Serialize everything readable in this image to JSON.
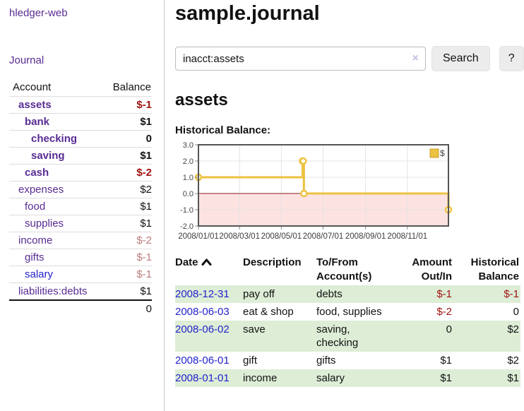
{
  "colors": {
    "link_purple": "#582c93",
    "link_blue": "#2323cc",
    "negative_red": "#a01313",
    "negative_dim_red": "#bd7b7b",
    "row_stripe_green": "#ddedd6",
    "chart_series_gold": "#edc240",
    "chart_negative_fill": "#fde2e2",
    "chart_zero_line": "#8b1c1c"
  },
  "app": {
    "title": "hledger-web"
  },
  "nav": {
    "journal": "Journal"
  },
  "sidebar": {
    "headers": {
      "account": "Account",
      "balance": "Balance"
    },
    "accounts": [
      {
        "name": "assets",
        "balance": "$-1",
        "indent": 1,
        "bold": true,
        "balance_style": "neg"
      },
      {
        "name": "bank",
        "balance": "$1",
        "indent": 2,
        "bold": true,
        "balance_style": "pos"
      },
      {
        "name": "checking",
        "balance": "0",
        "indent": 3,
        "bold": true,
        "balance_style": "pos"
      },
      {
        "name": "saving",
        "balance": "$1",
        "indent": 3,
        "bold": true,
        "balance_style": "pos"
      },
      {
        "name": "cash",
        "balance": "$-2",
        "indent": 2,
        "bold": true,
        "balance_style": "neg"
      },
      {
        "name": "expenses",
        "balance": "$2",
        "indent": 1,
        "bold": false,
        "balance_style": "pos"
      },
      {
        "name": "food",
        "balance": "$1",
        "indent": 2,
        "bold": false,
        "balance_style": "pos"
      },
      {
        "name": "supplies",
        "balance": "$1",
        "indent": 2,
        "bold": false,
        "balance_style": "pos"
      },
      {
        "name": "income",
        "balance": "$-2",
        "indent": 1,
        "bold": false,
        "balance_style": "dim"
      },
      {
        "name": "gifts",
        "balance": "$-1",
        "indent": 2,
        "bold": false,
        "balance_style": "dim"
      },
      {
        "name": "salary",
        "balance": "$-1",
        "indent": 2,
        "bold": false,
        "balance_style": "dim",
        "link_style": "blue"
      },
      {
        "name": "liabilities:debts",
        "balance": "$1",
        "indent": 1,
        "bold": false,
        "balance_style": "pos"
      }
    ],
    "total": "0"
  },
  "header": {
    "title": "sample.journal"
  },
  "search": {
    "value": "inacct:assets",
    "clear_icon": "×",
    "button": "Search",
    "help_button": "?"
  },
  "account_page": {
    "title": "assets",
    "chart_label": "Historical Balance:"
  },
  "chart_data": {
    "type": "line",
    "title": "Historical Balance",
    "step": true,
    "legend_position": "top-right",
    "legend": [
      {
        "label": "$",
        "color": "#edc240"
      }
    ],
    "series": [
      {
        "name": "$",
        "color": "#edc240",
        "points": [
          {
            "date": "2008-01-01",
            "value": 1
          },
          {
            "date": "2008-06-01",
            "value": 2
          },
          {
            "date": "2008-06-02",
            "value": 2
          },
          {
            "date": "2008-06-03",
            "value": 0
          },
          {
            "date": "2008-12-31",
            "value": -1
          }
        ]
      }
    ],
    "x_range": [
      "2008-01-01",
      "2008-12-31"
    ],
    "y_range": [
      -2,
      3
    ],
    "y_ticks": [
      {
        "value": 3,
        "label": "3.0"
      },
      {
        "value": 2,
        "label": "2.0"
      },
      {
        "value": 1,
        "label": "1.0"
      },
      {
        "value": 0,
        "label": "0.0"
      },
      {
        "value": -1,
        "label": "-1.0"
      },
      {
        "value": -2,
        "label": "-2.0"
      }
    ],
    "x_ticks": [
      {
        "date": "2008-01-01",
        "label": "2008/01/01"
      },
      {
        "date": "2008-03-01",
        "label": "2008/03/01"
      },
      {
        "date": "2008-05-01",
        "label": "2008/05/01"
      },
      {
        "date": "2008-07-01",
        "label": "2008/07/01"
      },
      {
        "date": "2008-09-01",
        "label": "2008/09/01"
      },
      {
        "date": "2008-11-01",
        "label": "2008/11/01"
      }
    ],
    "grid": true,
    "negative_region_shaded": true
  },
  "register": {
    "sort": "ascending",
    "columns": {
      "date": "Date",
      "description": "Description",
      "accounts": "To/From Account(s)",
      "amount": "Amount Out/In",
      "balance": "Historical Balance"
    },
    "rows": [
      {
        "date": "2008-12-31",
        "description": "pay off",
        "accounts": "debts",
        "amount": "$-1",
        "balance": "$-1",
        "amount_negative": true,
        "balance_negative": true
      },
      {
        "date": "2008-06-03",
        "description": "eat & shop",
        "accounts": "food, supplies",
        "amount": "$-2",
        "balance": "0",
        "amount_negative": true,
        "balance_negative": false
      },
      {
        "date": "2008-06-02",
        "description": "save",
        "accounts": "saving, checking",
        "amount": "0",
        "balance": "$2",
        "amount_negative": false,
        "balance_negative": false
      },
      {
        "date": "2008-06-01",
        "description": "gift",
        "accounts": "gifts",
        "amount": "$1",
        "balance": "$2",
        "amount_negative": false,
        "balance_negative": false
      },
      {
        "date": "2008-01-01",
        "description": "income",
        "accounts": "salary",
        "amount": "$1",
        "balance": "$1",
        "amount_negative": false,
        "balance_negative": false
      }
    ]
  }
}
